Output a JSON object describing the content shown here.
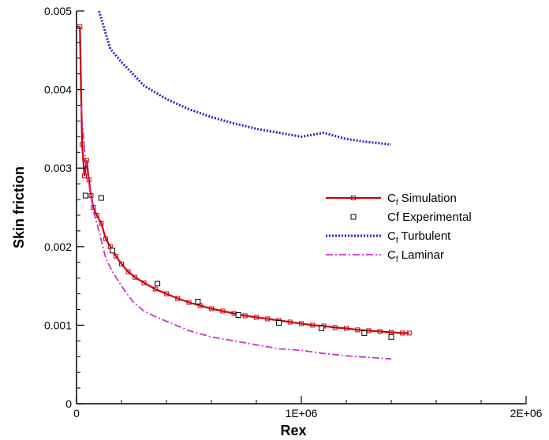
{
  "chart_data": {
    "type": "line",
    "xlabel": "Rex",
    "ylabel": "Skin friction",
    "xlim": [
      0,
      2000000
    ],
    "ylim": [
      0,
      0.005
    ],
    "x_ticks": [
      {
        "value": 0,
        "label": "0"
      },
      {
        "value": 1000000,
        "label": "1E+06"
      },
      {
        "value": 2000000,
        "label": "2E+06"
      }
    ],
    "y_ticks": [
      {
        "value": 0,
        "label": "0"
      },
      {
        "value": 0.001,
        "label": "0.001"
      },
      {
        "value": 0.002,
        "label": "0.002"
      },
      {
        "value": 0.003,
        "label": "0.003"
      },
      {
        "value": 0.004,
        "label": "0.004"
      },
      {
        "value": 0.005,
        "label": "0.005"
      }
    ],
    "legend_position": "right",
    "series": [
      {
        "name": "Cf Simulation",
        "legend_main": "C",
        "legend_sub": "f",
        "legend_rest": " Simulation",
        "style": "solid-square-markers",
        "color": "#cc0000",
        "x": [
          15000,
          25000,
          35000,
          45000,
          55000,
          65000,
          75000,
          90000,
          110000,
          130000,
          150000,
          175000,
          200000,
          230000,
          260000,
          300000,
          350000,
          400000,
          450000,
          500000,
          550000,
          600000,
          650000,
          700000,
          750000,
          800000,
          850000,
          900000,
          950000,
          1000000,
          1050000,
          1100000,
          1150000,
          1200000,
          1250000,
          1300000,
          1350000,
          1400000,
          1450000,
          1480000
        ],
        "y": [
          0.0048,
          0.0033,
          0.0029,
          0.0031,
          0.00285,
          0.00265,
          0.0025,
          0.0024,
          0.0023,
          0.0021,
          0.002,
          0.00188,
          0.00178,
          0.00168,
          0.00161,
          0.00154,
          0.00146,
          0.0014,
          0.00134,
          0.00129,
          0.00125,
          0.00121,
          0.00118,
          0.00115,
          0.00112,
          0.0011,
          0.00108,
          0.00106,
          0.00104,
          0.00102,
          0.001,
          0.00099,
          0.00097,
          0.00096,
          0.00094,
          0.00093,
          0.00092,
          0.00091,
          0.0009,
          0.0009
        ]
      },
      {
        "name": "Cf Experimental",
        "legend_main": "Cf Experimental",
        "legend_sub": "",
        "legend_rest": "",
        "style": "open-square-markers",
        "color": "#000000",
        "x": [
          40000,
          110000,
          160000,
          360000,
          540000,
          720000,
          900000,
          1090000,
          1280000,
          1400000
        ],
        "y": [
          0.00265,
          0.00262,
          0.00195,
          0.00153,
          0.0013,
          0.00113,
          0.00103,
          0.00096,
          0.0009,
          0.00085
        ]
      },
      {
        "name": "Cf Turbulent",
        "legend_main": "C",
        "legend_sub": "f",
        "legend_rest": " Turbulent",
        "style": "dotted",
        "color": "#2222cc",
        "x": [
          100000,
          150000,
          200000,
          300000,
          400000,
          500000,
          600000,
          700000,
          800000,
          900000,
          1000000,
          1100000,
          1200000,
          1300000,
          1400000
        ],
        "y": [
          0.005,
          0.00452,
          0.00435,
          0.00405,
          0.00388,
          0.00375,
          0.00365,
          0.00357,
          0.0035,
          0.00345,
          0.0034,
          0.00345,
          0.00337,
          0.00333,
          0.0033
        ]
      },
      {
        "name": "Cf Laminar",
        "legend_main": "C",
        "legend_sub": "f",
        "legend_rest": " Laminar",
        "style": "dash-dot",
        "color": "#cc33cc",
        "x": [
          20000,
          40000,
          60000,
          80000,
          100000,
          130000,
          160000,
          200000,
          250000,
          300000,
          350000,
          400000,
          500000,
          600000,
          700000,
          800000,
          900000,
          1000000,
          1100000,
          1200000,
          1300000,
          1400000
        ],
        "y": [
          0.0038,
          0.0031,
          0.0027,
          0.0024,
          0.0022,
          0.00185,
          0.00168,
          0.0015,
          0.0013,
          0.00118,
          0.00111,
          0.00105,
          0.00093,
          0.00085,
          0.0008,
          0.00075,
          0.0007,
          0.00068,
          0.00064,
          0.00061,
          0.00059,
          0.00057
        ]
      }
    ]
  },
  "colors": {
    "axis": "#000000",
    "simulation": "#cc0000",
    "turbulent": "#2222cc",
    "laminar": "#cc33cc"
  }
}
